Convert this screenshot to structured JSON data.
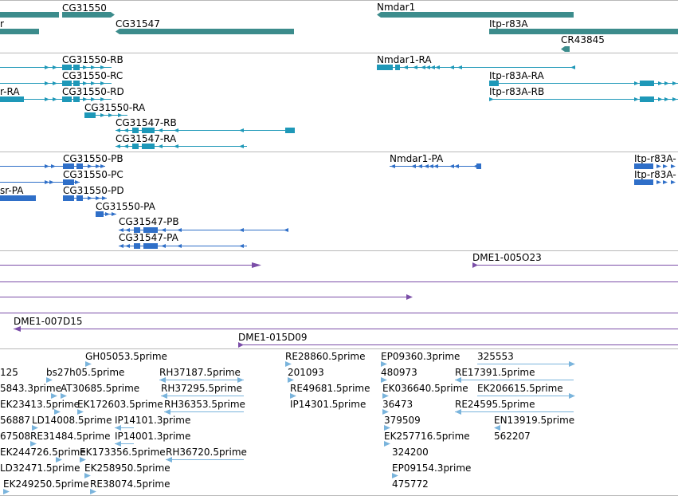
{
  "colors": {
    "gene": "#3c8c8c",
    "transcript": "#1e98b8",
    "protein": "#2f6fc8",
    "clone": "#7b4ea8",
    "est": "#7ab4dc",
    "separator": "#b8b8b8"
  },
  "tracks": {
    "genes": [
      {
        "name": "CG31550",
        "shape": "arrow-right"
      },
      {
        "name": "r",
        "shape": "plain"
      },
      {
        "name": "CG31547",
        "shape": "arrow-left"
      },
      {
        "name": "Nmdar1",
        "shape": "arrow-left"
      },
      {
        "name": "Itp-r83A",
        "shape": "plain"
      },
      {
        "name": "CR43845",
        "shape": "arrow-left"
      }
    ],
    "transcripts": [
      {
        "name": "CG31550-RB"
      },
      {
        "name": "CG31550-RC"
      },
      {
        "name": "r-RA"
      },
      {
        "name": "CG31550-RD"
      },
      {
        "name": "CG31550-RA"
      },
      {
        "name": "CG31547-RB"
      },
      {
        "name": "CG31547-RA"
      },
      {
        "name": "Nmdar1-RA"
      },
      {
        "name": "Itp-r83A-RA"
      },
      {
        "name": "Itp-r83A-RB"
      }
    ],
    "proteins": [
      {
        "name": "CG31550-PB"
      },
      {
        "name": "CG31550-PC"
      },
      {
        "name": "sr-PA"
      },
      {
        "name": "CG31550-PD"
      },
      {
        "name": "CG31550-PA"
      },
      {
        "name": "CG31547-PB"
      },
      {
        "name": "CG31547-PA"
      },
      {
        "name": "Nmdar1-PA"
      },
      {
        "name": "Itp-r83A-"
      },
      {
        "name": "Itp-r83A-"
      }
    ],
    "clones": [
      {
        "name": "DME1-005O23"
      },
      {
        "name": "DME1-007D15"
      },
      {
        "name": "DME1-015D09"
      }
    ],
    "ests": [
      {
        "name": "GH05053.5prime"
      },
      {
        "name": "RE28860.5prime"
      },
      {
        "name": "EP09360.3prime"
      },
      {
        "name": "325553"
      },
      {
        "name": "125"
      },
      {
        "name": "bs27h05.5prime"
      },
      {
        "name": "RH37187.5prime"
      },
      {
        "name": "201093"
      },
      {
        "name": "480973"
      },
      {
        "name": "RE17391.5prime"
      },
      {
        "name": "5843.3prime"
      },
      {
        "name": "AT30685.5prime"
      },
      {
        "name": "RH37295.5prime"
      },
      {
        "name": "RE49681.5prime"
      },
      {
        "name": "EK036640.5prime"
      },
      {
        "name": "EK206615.5prime"
      },
      {
        "name": "EK23413.5prime"
      },
      {
        "name": "EK172603.5prime"
      },
      {
        "name": "RH36353.5prime"
      },
      {
        "name": "IP14301.5prime"
      },
      {
        "name": "36473"
      },
      {
        "name": "RE24595.5prime"
      },
      {
        "name": "56887"
      },
      {
        "name": "LD14008.5prime"
      },
      {
        "name": "IP14101.3prime"
      },
      {
        "name": "379509"
      },
      {
        "name": "EN13919.5prime"
      },
      {
        "name": "67508"
      },
      {
        "name": "RE31484.5prime"
      },
      {
        "name": "IP14001.3prime"
      },
      {
        "name": "EK257716.5prime"
      },
      {
        "name": "562207"
      },
      {
        "name": "EK244726.5prime"
      },
      {
        "name": "EK173356.5prime"
      },
      {
        "name": "RH36720.5prime"
      },
      {
        "name": "324200"
      },
      {
        "name": "LD32471.5prime"
      },
      {
        "name": "EK258950.5prime"
      },
      {
        "name": "EP09154.3prime"
      },
      {
        "name": "EK249250.5prime"
      },
      {
        "name": "RE38074.5prime"
      },
      {
        "name": "475772"
      }
    ]
  }
}
